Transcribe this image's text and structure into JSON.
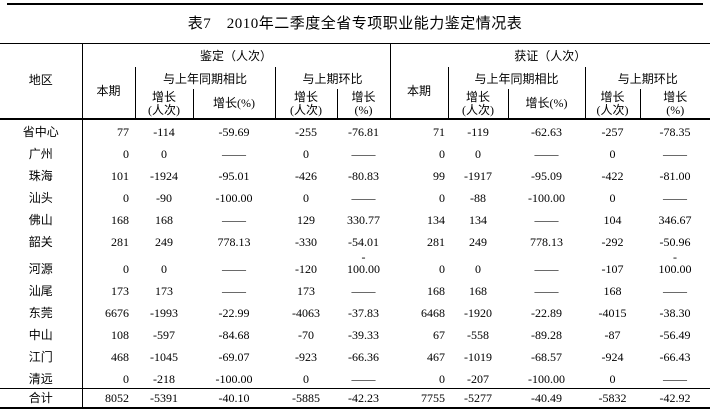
{
  "page": {
    "title": "表7　2010年二季度全省专项职业能力鉴定情况表"
  },
  "colors": {
    "text": "#000000",
    "background": "#ffffff",
    "rule": "#000000"
  },
  "table": {
    "header": {
      "region": "地区",
      "sections": [
        {
          "label": "鉴定（人次）"
        },
        {
          "label": "获证（人次）"
        }
      ],
      "current": "本期",
      "yoy": "与上年同期相比",
      "mom": "与上期环比",
      "growth_count": "增长\n(人次)",
      "growth_pct": "增长(%)",
      "growth_pct_wrapped": "增长\n(%)"
    },
    "rows": [
      {
        "region": "省中心",
        "values": [
          "77",
          "-114",
          "-59.69",
          "-255",
          "-76.81",
          "71",
          "-119",
          "-62.63",
          "-257",
          "-78.35"
        ]
      },
      {
        "region": "广州",
        "values": [
          "0",
          "0",
          "——",
          "0",
          "——",
          "0",
          "0",
          "——",
          "0",
          "——"
        ]
      },
      {
        "region": "珠海",
        "values": [
          "101",
          "-1924",
          "-95.01",
          "-426",
          "-80.83",
          "99",
          "-1917",
          "-95.09",
          "-422",
          "-81.00"
        ]
      },
      {
        "region": "汕头",
        "values": [
          "0",
          "-90",
          "-100.00",
          "0",
          "——",
          "0",
          "-88",
          "-100.00",
          "0",
          "——"
        ]
      },
      {
        "region": "佛山",
        "values": [
          "168",
          "168",
          "——",
          "129",
          "330.77",
          "134",
          "134",
          "——",
          "104",
          "346.67"
        ]
      },
      {
        "region": "韶关",
        "values": [
          "281",
          "249",
          "778.13",
          "-330",
          "-54.01",
          "281",
          "249",
          "778.13",
          "-292",
          "-50.96"
        ]
      },
      {
        "region": "河源",
        "tall": true,
        "values": [
          "0",
          "0",
          "——",
          "-120",
          "-\n100.00",
          "0",
          "0",
          "——",
          "-107",
          "-\n100.00"
        ]
      },
      {
        "region": "汕尾",
        "values": [
          "173",
          "173",
          "——",
          "173",
          "——",
          "168",
          "168",
          "——",
          "168",
          "——"
        ]
      },
      {
        "region": "东莞",
        "values": [
          "6676",
          "-1993",
          "-22.99",
          "-4063",
          "-37.83",
          "6468",
          "-1920",
          "-22.89",
          "-4015",
          "-38.30"
        ]
      },
      {
        "region": "中山",
        "values": [
          "108",
          "-597",
          "-84.68",
          "-70",
          "-39.33",
          "67",
          "-558",
          "-89.28",
          "-87",
          "-56.49"
        ]
      },
      {
        "region": "江门",
        "values": [
          "468",
          "-1045",
          "-69.07",
          "-923",
          "-66.36",
          "467",
          "-1019",
          "-68.57",
          "-924",
          "-66.43"
        ]
      },
      {
        "region": "清远",
        "values": [
          "0",
          "-218",
          "-100.00",
          "0",
          "——",
          "0",
          "-207",
          "-100.00",
          "0",
          "——"
        ]
      }
    ],
    "total": {
      "region": "合计",
      "values": [
        "8052",
        "-5391",
        "-40.10",
        "-5885",
        "-42.23",
        "7755",
        "-5277",
        "-40.49",
        "-5832",
        "-42.92"
      ]
    }
  }
}
